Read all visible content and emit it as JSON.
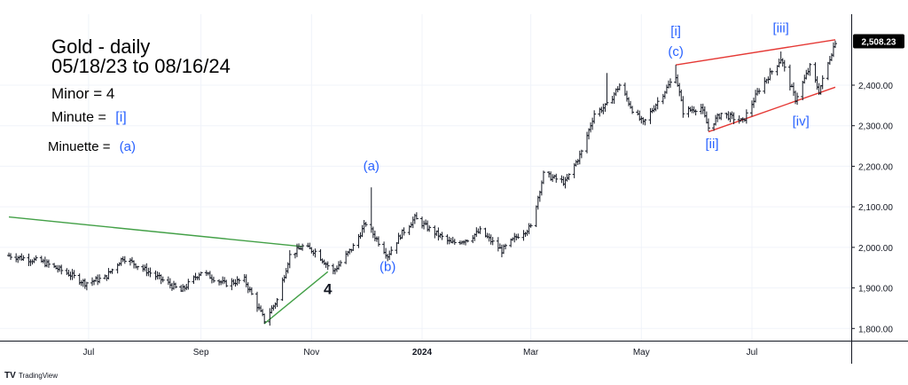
{
  "chart_data": {
    "type": "ohlc",
    "title_lines": [
      "Gold - daily",
      "05/18/23 to 08/16/24"
    ],
    "legend": [
      {
        "label": "Minor = ",
        "value": "4",
        "value_color": "#000000"
      },
      {
        "label": "Minute = ",
        "value": "[i]",
        "value_color": "#2962ff"
      },
      {
        "label": "Minuette = ",
        "value": "(a)",
        "value_color": "#2962ff"
      }
    ],
    "x_ticks": [
      {
        "label": "Jul",
        "date": "2023-07-01",
        "bold": false
      },
      {
        "label": "Sep",
        "date": "2023-09-01",
        "bold": false
      },
      {
        "label": "Nov",
        "date": "2023-11-01",
        "bold": false
      },
      {
        "label": "2024",
        "date": "2024-01-01",
        "bold": true
      },
      {
        "label": "Mar",
        "date": "2024-03-01",
        "bold": false
      },
      {
        "label": "May",
        "date": "2024-05-01",
        "bold": false
      },
      {
        "label": "Jul",
        "date": "2024-07-01",
        "bold": false
      }
    ],
    "x_range": [
      "2023-05-18",
      "2024-08-16"
    ],
    "y_ticks": [
      1800,
      1900,
      2000,
      2100,
      2200,
      2300,
      2400
    ],
    "y_tick_labels": [
      "1,800.00",
      "1,900.00",
      "2,000.00",
      "2,100.00",
      "2,200.00",
      "2,300.00",
      "2,400.00"
    ],
    "ylim": [
      1770,
      2575
    ],
    "last_price": 2508.23,
    "last_price_label": "2,508.23",
    "grid": true,
    "anchors": [
      [
        "2023-05-18",
        1980
      ],
      [
        "2023-06-05",
        1965
      ],
      [
        "2023-06-20",
        1935
      ],
      [
        "2023-06-29",
        1912
      ],
      [
        "2023-07-10",
        1925
      ],
      [
        "2023-07-20",
        1975
      ],
      [
        "2023-08-01",
        1945
      ],
      [
        "2023-08-21",
        1892
      ],
      [
        "2023-09-01",
        1940
      ],
      [
        "2023-09-14",
        1910
      ],
      [
        "2023-09-25",
        1920
      ],
      [
        "2023-10-06",
        1820
      ],
      [
        "2023-10-13",
        1870
      ],
      [
        "2023-10-20",
        1980
      ],
      [
        "2023-10-27",
        2002
      ],
      [
        "2023-11-03",
        1990
      ],
      [
        "2023-11-13",
        1940
      ],
      [
        "2023-11-24",
        2002
      ],
      [
        "2023-12-01",
        2060
      ],
      [
        "2023-12-04",
        2040
      ],
      [
        "2023-12-13",
        1980
      ],
      [
        "2023-12-20",
        2030
      ],
      [
        "2023-12-28",
        2072
      ],
      [
        "2024-01-05",
        2045
      ],
      [
        "2024-01-17",
        2010
      ],
      [
        "2024-01-26",
        2020
      ],
      [
        "2024-02-02",
        2040
      ],
      [
        "2024-02-14",
        1992
      ],
      [
        "2024-02-23",
        2030
      ],
      [
        "2024-03-01",
        2050
      ],
      [
        "2024-03-08",
        2180
      ],
      [
        "2024-03-20",
        2160
      ],
      [
        "2024-03-29",
        2235
      ],
      [
        "2024-04-05",
        2330
      ],
      [
        "2024-04-12",
        2350
      ],
      [
        "2024-04-19",
        2400
      ],
      [
        "2024-04-26",
        2340
      ],
      [
        "2024-05-02",
        2305
      ],
      [
        "2024-05-10",
        2360
      ],
      [
        "2024-05-20",
        2425
      ],
      [
        "2024-05-24",
        2335
      ],
      [
        "2024-06-03",
        2345
      ],
      [
        "2024-06-07",
        2295
      ],
      [
        "2024-06-14",
        2330
      ],
      [
        "2024-06-26",
        2310
      ],
      [
        "2024-07-05",
        2390
      ],
      [
        "2024-07-17",
        2465
      ],
      [
        "2024-07-25",
        2365
      ],
      [
        "2024-08-02",
        2445
      ],
      [
        "2024-08-07",
        2385
      ],
      [
        "2024-08-16",
        2508
      ]
    ],
    "spikes": [
      {
        "date": "2023-12-04",
        "high": 2148
      },
      {
        "date": "2024-04-12",
        "high": 2430
      },
      {
        "date": "2024-05-20",
        "high": 2450
      },
      {
        "date": "2024-07-17",
        "high": 2483
      },
      {
        "date": "2024-08-16",
        "high": 2510
      }
    ],
    "trendlines": [
      {
        "color": "#43a047",
        "points": [
          [
            "2023-05-18",
            2075
          ],
          [
            "2023-10-27",
            2002
          ]
        ]
      },
      {
        "color": "#43a047",
        "points": [
          [
            "2023-10-06",
            1812
          ],
          [
            "2023-11-10",
            1940
          ]
        ]
      },
      {
        "color": "#e53935",
        "points": [
          [
            "2024-05-20",
            2450
          ],
          [
            "2024-08-16",
            2512
          ]
        ]
      },
      {
        "color": "#e53935",
        "points": [
          [
            "2024-06-07",
            2285
          ],
          [
            "2024-08-16",
            2395
          ]
        ]
      }
    ],
    "wave_labels": [
      {
        "text": "(a)",
        "date": "2023-12-04",
        "price": 2190,
        "color": "#2962ff"
      },
      {
        "text": "(b)",
        "date": "2023-12-13",
        "price": 1942,
        "color": "#2962ff"
      },
      {
        "text": "4",
        "date": "2023-11-10",
        "price": 1885,
        "color": "#131722"
      },
      {
        "text": "[i]",
        "date": "2024-05-20",
        "price": 2522,
        "color": "#2962ff"
      },
      {
        "text": "(c)",
        "date": "2024-05-20",
        "price": 2472,
        "color": "#2962ff"
      },
      {
        "text": "[ii]",
        "date": "2024-06-09",
        "price": 2245,
        "color": "#2962ff"
      },
      {
        "text": "[iii]",
        "date": "2024-07-17",
        "price": 2530,
        "color": "#2962ff"
      },
      {
        "text": "[iv]",
        "date": "2024-07-28",
        "price": 2300,
        "color": "#2962ff"
      }
    ]
  },
  "watermark": "TradingView",
  "colors": {
    "bars": "#131722",
    "grid": "#f0f3fa",
    "axis": "#131722",
    "price_tag_bg": "#000000",
    "price_tag_text": "#ffffff",
    "blue": "#2962ff"
  }
}
